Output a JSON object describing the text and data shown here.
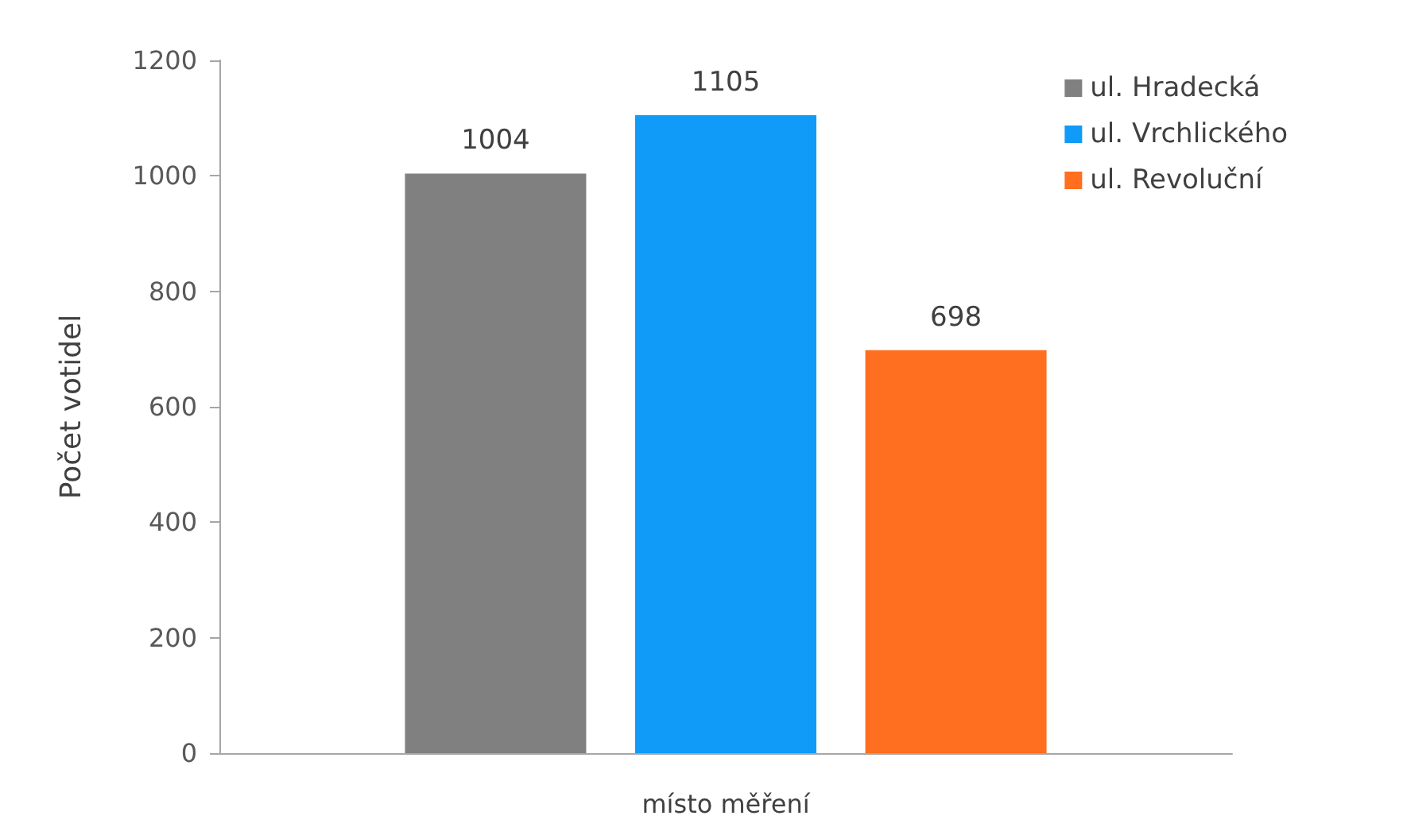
{
  "chart_data": {
    "type": "bar",
    "ylabel": "Počet votidel",
    "xlabel": "místo měření",
    "categories": [
      null
    ],
    "series": [
      {
        "name": "ul. Hradecká",
        "color": "#808080",
        "values": [
          1004
        ]
      },
      {
        "name": "ul. Vrchlického",
        "color": "#0f9bf7",
        "values": [
          1105
        ]
      },
      {
        "name": "ul. Revoluční",
        "color": "#ff6f1f",
        "values": [
          698
        ]
      }
    ],
    "ylim": [
      0,
      1200
    ],
    "yticks": [
      0,
      200,
      400,
      600,
      800,
      1000,
      1200
    ],
    "data_labels": true,
    "legend": "top right",
    "grid": false
  }
}
